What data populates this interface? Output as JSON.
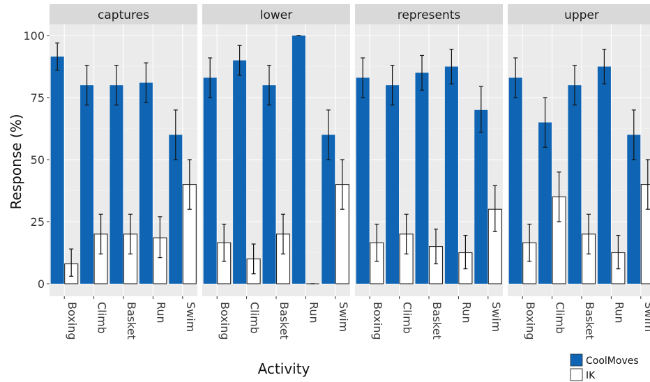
{
  "chart_data": {
    "type": "bar",
    "xlabel": "Activity",
    "ylabel": "Response (%)",
    "ylim": [
      0,
      100
    ],
    "yticks": [
      0,
      25,
      50,
      75,
      100
    ],
    "ytick_labels": [
      "0",
      "25",
      "50",
      "75",
      "100"
    ],
    "categories": [
      "Boxing",
      "Climb",
      "Basket",
      "Run",
      "Swim"
    ],
    "facets": [
      "captures",
      "lower",
      "represents",
      "upper"
    ],
    "legend": {
      "placement": "bottom-right",
      "entries": [
        {
          "name": "CoolMoves",
          "color": "#0f65b3"
        },
        {
          "name": "IK",
          "color": "#ffffff"
        }
      ]
    },
    "grid": true,
    "panels": [
      {
        "facet": "captures",
        "series": [
          {
            "name": "CoolMoves",
            "values": [
              91.5,
              80,
              80,
              81,
              60
            ],
            "err_low": [
              86,
              72,
              72,
              73,
              50
            ],
            "err_high": [
              97,
              88,
              88,
              89,
              70
            ]
          },
          {
            "name": "IK",
            "values": [
              8,
              20,
              20,
              18.5,
              40
            ],
            "err_low": [
              3,
              12,
              12,
              10.5,
              30
            ],
            "err_high": [
              14,
              28,
              28,
              27,
              50
            ]
          }
        ]
      },
      {
        "facet": "lower",
        "series": [
          {
            "name": "CoolMoves",
            "values": [
              83,
              90,
              80,
              100,
              60
            ],
            "err_low": [
              75,
              84,
              72,
              100,
              50
            ],
            "err_high": [
              91,
              96,
              88,
              100,
              70
            ]
          },
          {
            "name": "IK",
            "values": [
              16.5,
              10,
              20,
              0,
              40
            ],
            "err_low": [
              9,
              4,
              12,
              0,
              30
            ],
            "err_high": [
              24,
              16,
              28,
              0,
              50
            ]
          }
        ]
      },
      {
        "facet": "represents",
        "series": [
          {
            "name": "CoolMoves",
            "values": [
              83,
              80,
              85,
              87.5,
              70
            ],
            "err_low": [
              75,
              72,
              78,
              80.5,
              61
            ],
            "err_high": [
              91,
              88,
              92,
              94.5,
              79.5
            ]
          },
          {
            "name": "IK",
            "values": [
              16.5,
              20,
              15,
              12.5,
              30
            ],
            "err_low": [
              9,
              12,
              8,
              6,
              21
            ],
            "err_high": [
              24,
              28,
              22,
              19.5,
              39.5
            ]
          }
        ]
      },
      {
        "facet": "upper",
        "series": [
          {
            "name": "CoolMoves",
            "values": [
              83,
              65,
              80,
              87.5,
              60
            ],
            "err_low": [
              75,
              55,
              72,
              80.5,
              50
            ],
            "err_high": [
              91,
              75,
              88,
              94.5,
              70
            ]
          },
          {
            "name": "IK",
            "values": [
              16.5,
              35,
              20,
              12.5,
              40
            ],
            "err_low": [
              9,
              25,
              12,
              6,
              30
            ],
            "err_high": [
              24,
              45,
              28,
              19.5,
              50
            ]
          }
        ]
      }
    ]
  }
}
